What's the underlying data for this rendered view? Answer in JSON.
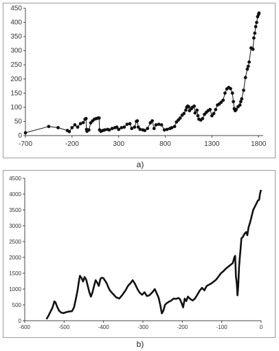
{
  "captions": {
    "a": "a)",
    "b": "b)"
  },
  "colors": {
    "series": "#111111",
    "axis": "#444444",
    "frame": "#9a9a9a"
  },
  "chart_data": [
    {
      "type": "line",
      "title": "",
      "xlabel": "",
      "ylabel": "",
      "markers": "circle",
      "grid": false,
      "legend": "none",
      "xlim": [
        -700,
        1850
      ],
      "ylim": [
        0,
        450
      ],
      "xticks": [
        -700,
        -200,
        300,
        800,
        1300,
        1800
      ],
      "yticks": [
        0,
        50,
        100,
        150,
        200,
        250,
        300,
        350,
        400,
        450
      ],
      "series": [
        {
          "points": [
            [
              -700,
              10
            ],
            [
              -450,
              32
            ],
            [
              -350,
              28
            ],
            [
              -250,
              18
            ],
            [
              -230,
              14
            ],
            [
              -200,
              28
            ],
            [
              -170,
              38
            ],
            [
              -140,
              30
            ],
            [
              -110,
              42
            ],
            [
              -80,
              46
            ],
            [
              -60,
              58
            ],
            [
              -50,
              60
            ],
            [
              -45,
              22
            ],
            [
              -40,
              15
            ],
            [
              -20,
              20
            ],
            [
              0,
              45
            ],
            [
              20,
              52
            ],
            [
              40,
              58
            ],
            [
              60,
              60
            ],
            [
              80,
              62
            ],
            [
              90,
              62
            ],
            [
              95,
              20
            ],
            [
              110,
              15
            ],
            [
              130,
              18
            ],
            [
              150,
              20
            ],
            [
              180,
              22
            ],
            [
              200,
              20
            ],
            [
              230,
              25
            ],
            [
              260,
              28
            ],
            [
              280,
              30
            ],
            [
              300,
              22
            ],
            [
              330,
              28
            ],
            [
              360,
              30
            ],
            [
              390,
              40
            ],
            [
              420,
              42
            ],
            [
              440,
              25
            ],
            [
              470,
              30
            ],
            [
              490,
              50
            ],
            [
              500,
              52
            ],
            [
              510,
              30
            ],
            [
              530,
              22
            ],
            [
              560,
              20
            ],
            [
              580,
              18
            ],
            [
              610,
              25
            ],
            [
              640,
              45
            ],
            [
              660,
              52
            ],
            [
              680,
              25
            ],
            [
              700,
              38
            ],
            [
              730,
              40
            ],
            [
              760,
              38
            ],
            [
              790,
              20
            ],
            [
              820,
              22
            ],
            [
              850,
              25
            ],
            [
              870,
              28
            ],
            [
              900,
              32
            ],
            [
              920,
              48
            ],
            [
              940,
              55
            ],
            [
              960,
              62
            ],
            [
              980,
              72
            ],
            [
              1000,
              78
            ],
            [
              1020,
              90
            ],
            [
              1030,
              100
            ],
            [
              1040,
              104
            ],
            [
              1050,
              102
            ],
            [
              1060,
              88
            ],
            [
              1080,
              95
            ],
            [
              1090,
              100
            ],
            [
              1110,
              104
            ],
            [
              1120,
              80
            ],
            [
              1140,
              90
            ],
            [
              1150,
              70
            ],
            [
              1160,
              58
            ],
            [
              1180,
              55
            ],
            [
              1200,
              60
            ],
            [
              1220,
              75
            ],
            [
              1240,
              82
            ],
            [
              1260,
              88
            ],
            [
              1280,
              92
            ],
            [
              1300,
              70
            ],
            [
              1320,
              78
            ],
            [
              1340,
              92
            ],
            [
              1360,
              108
            ],
            [
              1380,
              112
            ],
            [
              1400,
              118
            ],
            [
              1420,
              125
            ],
            [
              1440,
              150
            ],
            [
              1460,
              165
            ],
            [
              1480,
              170
            ],
            [
              1500,
              166
            ],
            [
              1520,
              150
            ],
            [
              1530,
              120
            ],
            [
              1540,
              95
            ],
            [
              1550,
              88
            ],
            [
              1560,
              92
            ],
            [
              1580,
              102
            ],
            [
              1600,
              108
            ],
            [
              1610,
              120
            ],
            [
              1620,
              130
            ],
            [
              1640,
              160
            ],
            [
              1660,
              205
            ],
            [
              1680,
              235
            ],
            [
              1690,
              245
            ],
            [
              1700,
              260
            ],
            [
              1720,
              310
            ],
            [
              1740,
              305
            ],
            [
              1750,
              345
            ],
            [
              1760,
              362
            ],
            [
              1770,
              385
            ],
            [
              1780,
              400
            ],
            [
              1790,
              420
            ],
            [
              1800,
              428
            ],
            [
              1805,
              433
            ]
          ]
        }
      ]
    },
    {
      "type": "line",
      "title": "",
      "xlabel": "",
      "ylabel": "",
      "markers": "none",
      "grid": false,
      "legend": "none",
      "xlim": [
        -600,
        0
      ],
      "ylim": [
        0,
        4500
      ],
      "xticks": [
        -600,
        -500,
        -400,
        -300,
        -200,
        -100,
        0
      ],
      "yticks": [
        0,
        500,
        1000,
        1500,
        2000,
        2500,
        3000,
        3500,
        4000,
        4500
      ],
      "series": [
        {
          "points": [
            [
              -545,
              50
            ],
            [
              -540,
              150
            ],
            [
              -535,
              280
            ],
            [
              -530,
              400
            ],
            [
              -527,
              520
            ],
            [
              -525,
              610
            ],
            [
              -522,
              580
            ],
            [
              -518,
              450
            ],
            [
              -513,
              320
            ],
            [
              -508,
              260
            ],
            [
              -502,
              240
            ],
            [
              -495,
              270
            ],
            [
              -488,
              290
            ],
            [
              -480,
              300
            ],
            [
              -475,
              420
            ],
            [
              -470,
              700
            ],
            [
              -466,
              950
            ],
            [
              -463,
              1200
            ],
            [
              -460,
              1420
            ],
            [
              -456,
              1350
            ],
            [
              -452,
              1240
            ],
            [
              -448,
              1380
            ],
            [
              -444,
              1300
            ],
            [
              -440,
              1100
            ],
            [
              -436,
              900
            ],
            [
              -432,
              760
            ],
            [
              -428,
              900
            ],
            [
              -424,
              1100
            ],
            [
              -420,
              1280
            ],
            [
              -416,
              1200
            ],
            [
              -412,
              1100
            ],
            [
              -408,
              1320
            ],
            [
              -404,
              1360
            ],
            [
              -400,
              1340
            ],
            [
              -396,
              1260
            ],
            [
              -392,
              1180
            ],
            [
              -388,
              1060
            ],
            [
              -384,
              960
            ],
            [
              -380,
              900
            ],
            [
              -374,
              820
            ],
            [
              -368,
              740
            ],
            [
              -360,
              700
            ],
            [
              -352,
              820
            ],
            [
              -344,
              960
            ],
            [
              -338,
              1100
            ],
            [
              -332,
              1180
            ],
            [
              -326,
              1280
            ],
            [
              -320,
              1160
            ],
            [
              -314,
              1000
            ],
            [
              -308,
              880
            ],
            [
              -302,
              820
            ],
            [
              -296,
              900
            ],
            [
              -290,
              780
            ],
            [
              -284,
              800
            ],
            [
              -276,
              900
            ],
            [
              -270,
              1000
            ],
            [
              -265,
              860
            ],
            [
              -260,
              720
            ],
            [
              -256,
              500
            ],
            [
              -252,
              230
            ],
            [
              -248,
              320
            ],
            [
              -244,
              500
            ],
            [
              -240,
              550
            ],
            [
              -234,
              600
            ],
            [
              -228,
              640
            ],
            [
              -222,
              700
            ],
            [
              -216,
              690
            ],
            [
              -210,
              720
            ],
            [
              -206,
              680
            ],
            [
              -202,
              560
            ],
            [
              -198,
              420
            ],
            [
              -194,
              700
            ],
            [
              -190,
              620
            ],
            [
              -186,
              760
            ],
            [
              -180,
              690
            ],
            [
              -174,
              640
            ],
            [
              -168,
              700
            ],
            [
              -162,
              820
            ],
            [
              -156,
              950
            ],
            [
              -150,
              1040
            ],
            [
              -144,
              960
            ],
            [
              -138,
              1100
            ],
            [
              -132,
              1140
            ],
            [
              -126,
              1180
            ],
            [
              -120,
              1240
            ],
            [
              -114,
              1300
            ],
            [
              -108,
              1400
            ],
            [
              -102,
              1500
            ],
            [
              -96,
              1560
            ],
            [
              -90,
              1640
            ],
            [
              -84,
              1700
            ],
            [
              -80,
              1740
            ],
            [
              -76,
              1780
            ],
            [
              -72,
              1820
            ],
            [
              -68,
              2000
            ],
            [
              -66,
              2050
            ],
            [
              -64,
              1400
            ],
            [
              -62,
              1200
            ],
            [
              -60,
              800
            ],
            [
              -58,
              1100
            ],
            [
              -56,
              1700
            ],
            [
              -54,
              2000
            ],
            [
              -52,
              2300
            ],
            [
              -50,
              2600
            ],
            [
              -46,
              2650
            ],
            [
              -42,
              2750
            ],
            [
              -38,
              2800
            ],
            [
              -35,
              2700
            ],
            [
              -32,
              2950
            ],
            [
              -28,
              3100
            ],
            [
              -24,
              3300
            ],
            [
              -20,
              3500
            ],
            [
              -16,
              3600
            ],
            [
              -12,
              3700
            ],
            [
              -8,
              3800
            ],
            [
              -5,
              3820
            ],
            [
              -3,
              4000
            ],
            [
              -1,
              4100
            ],
            [
              0,
              4130
            ]
          ]
        }
      ]
    }
  ]
}
